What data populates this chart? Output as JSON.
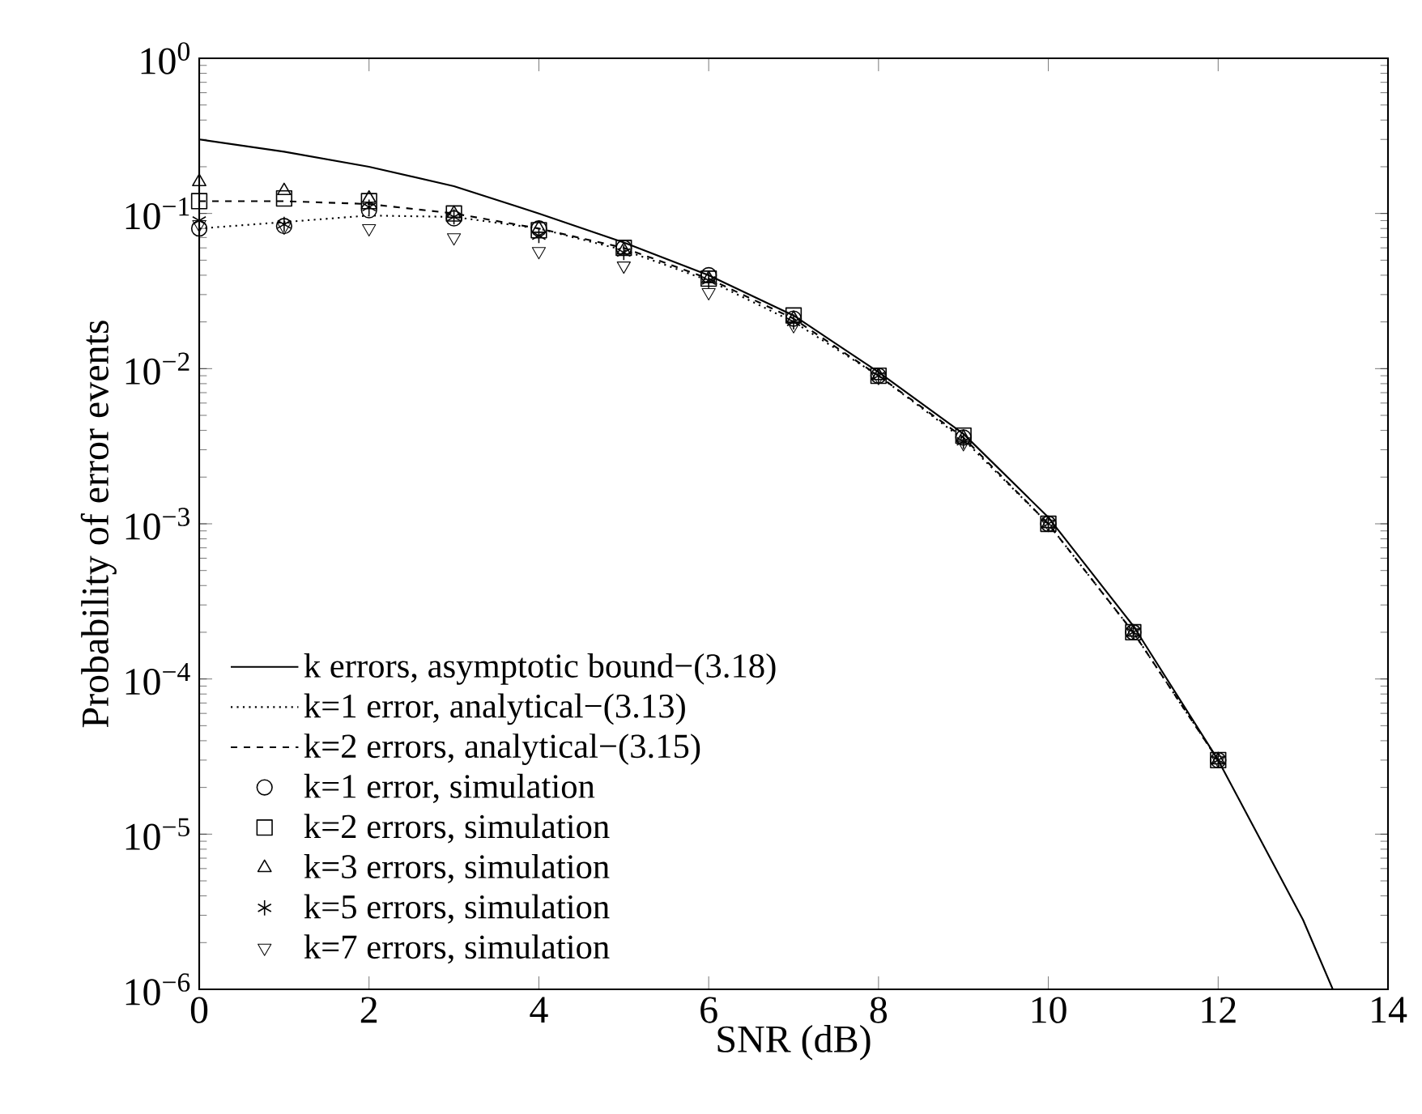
{
  "chart_data": {
    "type": "line",
    "xlabel": "SNR (dB)",
    "ylabel": "Probability of error events",
    "log": "y",
    "xlim": [
      0,
      14
    ],
    "xticks": [
      0,
      2,
      4,
      6,
      8,
      10,
      12,
      14
    ],
    "ylim": [
      1e-06,
      1
    ],
    "yticks": [
      {
        "value": 1e-06,
        "label": "10$^{−6}$"
      },
      {
        "value": 1e-05,
        "label": "10$^{−5}$"
      },
      {
        "value": 0.0001,
        "label": "10$^{−4}$"
      },
      {
        "value": 0.001,
        "label": "10$^{−3}$"
      },
      {
        "value": 0.01,
        "label": "10$^{−2}$"
      },
      {
        "value": 0.1,
        "label": "10$^{−1}$"
      },
      {
        "value": 1,
        "label": "10$^{0}$"
      }
    ],
    "grid": false,
    "legend": "bottom left",
    "series": [
      {
        "name": "k errors, asymptotic bound−(3.18)",
        "type": "line",
        "color": "#000000",
        "marker": "none",
        "line_style": "solid",
        "x": [
          0,
          1,
          2,
          3,
          4,
          5,
          6,
          7,
          8,
          9,
          10,
          11,
          12,
          13,
          13.35
        ],
        "values": [
          0.3,
          0.25,
          0.2,
          0.15,
          0.1,
          0.065,
          0.04,
          0.022,
          0.0095,
          0.0038,
          0.0011,
          0.00022,
          3e-05,
          2.8e-06,
          1e-06
        ]
      },
      {
        "name": "k=1 error, analytical−(3.13)",
        "type": "line",
        "color": "#010101",
        "marker": "none",
        "line_style": "dotted",
        "x": [
          0,
          1,
          2,
          3,
          4,
          5,
          6,
          7,
          8,
          9,
          10,
          11,
          12
        ],
        "values": [
          0.08,
          0.088,
          0.097,
          0.095,
          0.08,
          0.058,
          0.037,
          0.02,
          0.009,
          0.0035,
          0.001,
          0.0002,
          3e-05
        ]
      },
      {
        "name": "k=2 errors, analytical−(3.15)",
        "type": "line",
        "color": "#020202",
        "marker": "none",
        "line_style": "dashed",
        "x": [
          0,
          1,
          2,
          3,
          4,
          5,
          6,
          7,
          8,
          9,
          10,
          11,
          12
        ],
        "values": [
          0.12,
          0.12,
          0.115,
          0.1,
          0.08,
          0.06,
          0.038,
          0.021,
          0.009,
          0.0036,
          0.001,
          0.0002,
          3e-05
        ]
      },
      {
        "name": "k=1 error, simulation",
        "type": "scatter",
        "color": "#030303",
        "marker": "circle",
        "x": [
          0,
          1,
          2,
          3,
          4,
          5,
          6,
          7,
          8,
          9,
          10,
          11,
          12
        ],
        "values": [
          0.08,
          0.083,
          0.105,
          0.093,
          0.08,
          0.06,
          0.04,
          0.021,
          0.009,
          0.0036,
          0.001,
          0.0002,
          3e-05
        ]
      },
      {
        "name": "k=2 errors, simulation",
        "type": "scatter",
        "color": "#040404",
        "marker": "square",
        "x": [
          0,
          1,
          2,
          3,
          4,
          5,
          6,
          7,
          8,
          9,
          10,
          11,
          12
        ],
        "values": [
          0.12,
          0.125,
          0.12,
          0.1,
          0.078,
          0.06,
          0.038,
          0.022,
          0.009,
          0.0037,
          0.001,
          0.0002,
          3e-05
        ]
      },
      {
        "name": "k=3 errors, simulation",
        "type": "scatter",
        "color": "#050505",
        "marker": "triangle",
        "x": [
          0,
          1,
          2,
          3,
          4,
          5,
          6,
          7,
          8,
          9,
          10,
          11,
          12
        ],
        "values": [
          0.16,
          0.14,
          0.125,
          0.1,
          0.08,
          0.058,
          0.038,
          0.021,
          0.009,
          0.0036,
          0.001,
          0.0002,
          3e-05
        ]
      },
      {
        "name": "k=5 errors, simulation",
        "type": "scatter",
        "color": "#060606",
        "marker": "cross",
        "x": [
          0,
          1,
          2,
          3,
          4,
          5,
          6,
          7,
          8,
          9,
          10,
          11,
          12
        ],
        "values": [
          0.09,
          0.085,
          0.11,
          0.095,
          0.072,
          0.056,
          0.037,
          0.02,
          0.009,
          0.0034,
          0.001,
          0.0002,
          3e-05
        ]
      },
      {
        "name": "k=7 errors, simulation",
        "type": "scatter",
        "color": "#070707",
        "marker": "triangle-down",
        "x": [
          0,
          1,
          2,
          3,
          4,
          5,
          6,
          7,
          8,
          9,
          10,
          11,
          12
        ],
        "values": [
          0.085,
          0.082,
          0.08,
          0.07,
          0.057,
          0.046,
          0.031,
          0.019,
          0.0088,
          0.0033,
          0.001,
          0.0002,
          3e-05
        ]
      }
    ]
  }
}
